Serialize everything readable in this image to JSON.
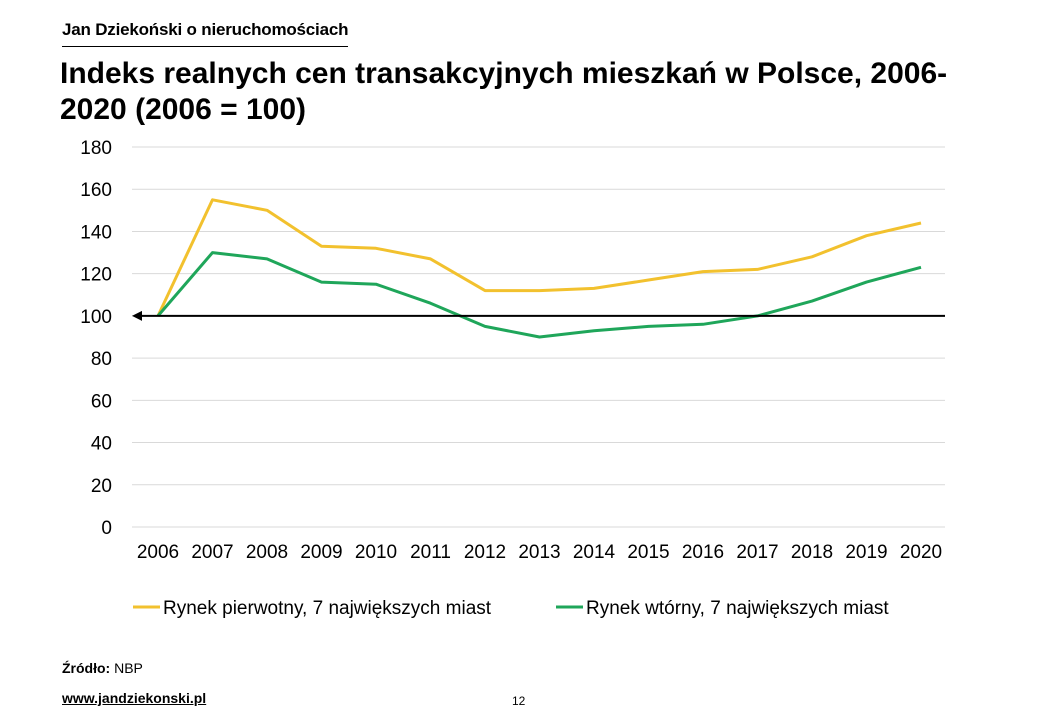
{
  "brand": "Jan Dziekoński o nieruchomościach",
  "chart_data": {
    "type": "line",
    "title": "Indeks realnych cen transakcyjnych mieszkań w Polsce, 2006-2020 (2006 = 100)",
    "categories": [
      "2006",
      "2007",
      "2008",
      "2009",
      "2010",
      "2011",
      "2012",
      "2013",
      "2014",
      "2015",
      "2016",
      "2017",
      "2018",
      "2019",
      "2020"
    ],
    "yticks": [
      "0",
      "20",
      "40",
      "60",
      "80",
      "100",
      "120",
      "140",
      "160",
      "180"
    ],
    "ylim": [
      0,
      180
    ],
    "reference_line": 100,
    "grid": true,
    "legend_position": "bottom",
    "xlabel": "",
    "ylabel": "",
    "series": [
      {
        "name": "Rynek pierwotny, 7 największych miast",
        "color": "#f2c12e",
        "values": [
          100,
          155,
          150,
          133,
          132,
          127,
          112,
          112,
          113,
          117,
          121,
          122,
          128,
          138,
          144
        ]
      },
      {
        "name": "Rynek wtórny, 7 największych miast",
        "color": "#1fa65a",
        "values": [
          100,
          130,
          127,
          116,
          115,
          106,
          95,
          90,
          93,
          95,
          96,
          100,
          107,
          116,
          123
        ]
      }
    ]
  },
  "footer": {
    "source_label": "Źródło:",
    "source_value": "NBP",
    "website": "www.jandziekonski.pl",
    "page_number": "12"
  }
}
